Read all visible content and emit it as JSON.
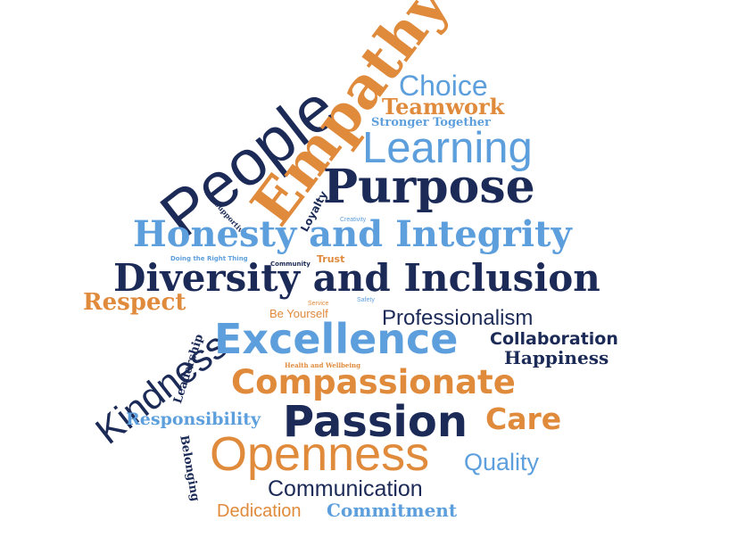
{
  "words": {
    "people": "People",
    "empathy": "Empathy",
    "choice": "Choice",
    "teamwork": "Teamwork",
    "stronger_together": "Stronger Together",
    "learning": "Learning",
    "purpose": "Purpose",
    "loyalty": "Loyalty",
    "supportive": "Supportive",
    "creativity": "Creativity",
    "honesty_integrity": "Honesty and Integrity",
    "doing_right_thing": "Doing the Right Thing",
    "community": "Community",
    "trust": "Trust",
    "diversity_inclusion": "Diversity and Inclusion",
    "respect": "Respect",
    "service": "Service",
    "safety": "Safety",
    "be_yourself": "Be Yourself",
    "professionalism": "Professionalism",
    "kindness": "Kindness",
    "excellence": "Excellence",
    "collaboration": "Collaboration",
    "leadership": "Leadership",
    "health_wellbeing": "Health and Wellbeing",
    "happiness": "Happiness",
    "compassionate": "Compassionate",
    "responsibility": "Responsibility",
    "passion": "Passion",
    "care": "Care",
    "belonging": "Belonging",
    "openness": "Openness",
    "quality": "Quality",
    "communication": "Communication",
    "dedication": "Dedication",
    "commitment": "Commitment"
  },
  "colors": {
    "navy": "#1c2a57",
    "orange": "#e08a3c",
    "light_blue": "#5d9fdc"
  }
}
